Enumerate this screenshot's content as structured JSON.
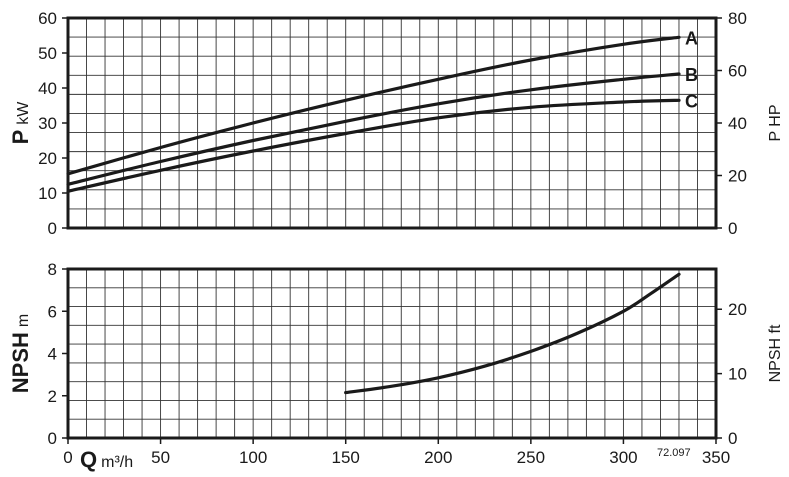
{
  "chart_data": [
    {
      "type": "line",
      "title": "",
      "ylabel": {
        "main": "P",
        "unit": "kW"
      },
      "y2label": "P HP",
      "xlim": [
        0,
        350
      ],
      "ylim": [
        0,
        60
      ],
      "y2lim": [
        0,
        80
      ],
      "yticks": [
        "0",
        "10",
        "20",
        "30",
        "40",
        "50",
        "60"
      ],
      "y2ticks": [
        "0",
        "20",
        "40",
        "60",
        "80"
      ],
      "grid": true,
      "series": [
        {
          "name": "A",
          "x": [
            0,
            50,
            100,
            150,
            200,
            250,
            300,
            330
          ],
          "y": [
            15.5,
            23.0,
            30.0,
            36.5,
            42.5,
            48.0,
            52.5,
            54.5
          ]
        },
        {
          "name": "B",
          "x": [
            0,
            50,
            100,
            150,
            200,
            250,
            300,
            330
          ],
          "y": [
            12.5,
            19.0,
            25.0,
            30.5,
            35.5,
            39.5,
            42.5,
            44.0
          ]
        },
        {
          "name": "C",
          "x": [
            0,
            50,
            100,
            150,
            200,
            250,
            300,
            330
          ],
          "y": [
            10.5,
            16.5,
            22.0,
            27.0,
            31.5,
            34.5,
            36.0,
            36.5
          ]
        }
      ]
    },
    {
      "type": "line",
      "title": "",
      "xlabel": {
        "main": "Q",
        "unit": "m³/h"
      },
      "ylabel": {
        "main": "NPSH",
        "unit": "m"
      },
      "y2label": "NPSH ft",
      "xlim": [
        0,
        350
      ],
      "ylim": [
        0,
        8
      ],
      "y2lim": [
        0,
        26.25
      ],
      "xticks": [
        "0",
        "50",
        "100",
        "150",
        "200",
        "250",
        "300",
        "350"
      ],
      "yticks": [
        "0",
        "2",
        "4",
        "6",
        "8"
      ],
      "y2ticks": [
        "0",
        "10",
        "20"
      ],
      "grid": true,
      "series": [
        {
          "x": [
            150,
            175,
            200,
            225,
            250,
            275,
            300,
            315,
            330
          ],
          "y": [
            2.15,
            2.45,
            2.85,
            3.4,
            4.1,
            4.95,
            6.0,
            6.85,
            7.75
          ]
        }
      ]
    }
  ],
  "figure_code": "72.097"
}
